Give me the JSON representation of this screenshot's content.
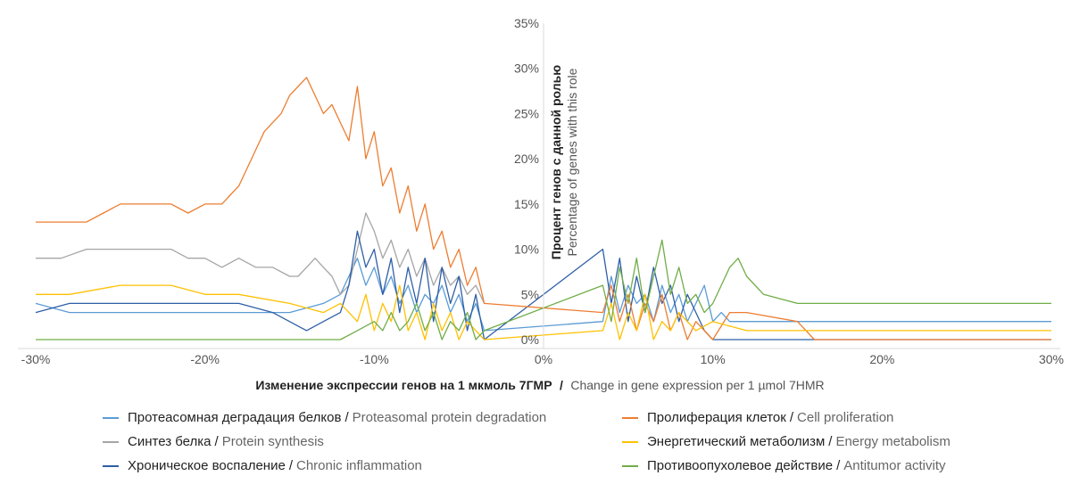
{
  "chart_data": {
    "type": "line",
    "xlabel_ru": "Изменение экспрессии генов на 1 мкмоль 7ГМР",
    "xlabel_en": "Change in gene expression per 1 µmol 7HMR",
    "xlabel_sep": "/",
    "ylabel_ru": "Процент генов с данной ролью",
    "ylabel_en": "Percentage of genes with this role",
    "xlim": [
      -30,
      30
    ],
    "ylim": [
      0,
      35
    ],
    "x_ticks": [
      -30,
      -20,
      -10,
      0,
      10,
      20,
      30
    ],
    "x_tick_labels": [
      "-30%",
      "-20%",
      "-10%",
      "0%",
      "10%",
      "20%",
      "30%"
    ],
    "y_ticks": [
      0,
      5,
      10,
      15,
      20,
      25,
      30,
      35
    ],
    "y_tick_labels": [
      "0%",
      "5%",
      "10%",
      "15%",
      "20%",
      "25%",
      "30%",
      "35%"
    ],
    "grid": false,
    "legend_position": "bottom",
    "series": [
      {
        "name": "Протеасомная деградация белков / Proteasomal protein degradation",
        "name_ru": "Протеасомная деградация белков",
        "name_en": "Proteasomal protein degradation",
        "color": "#5b9bd5",
        "x": [
          -30,
          -28,
          -25,
          -20,
          -18,
          -15,
          -13,
          -12,
          -11.5,
          -11,
          -10.5,
          -10,
          -9.5,
          -9,
          -8.5,
          -8,
          -7.5,
          -7,
          -6.5,
          -6,
          -5.5,
          -5,
          -4.5,
          -4,
          -3.5,
          3.5,
          4,
          4.5,
          5,
          5.5,
          6,
          6.5,
          7,
          7.5,
          8,
          8.5,
          9,
          9.5,
          10,
          10.5,
          11,
          12,
          15,
          20,
          25,
          30
        ],
        "y": [
          4,
          3,
          3,
          3,
          3,
          3,
          4,
          5,
          7,
          9,
          6,
          8,
          5,
          7,
          4,
          6,
          3,
          5,
          4,
          6,
          3,
          5,
          2,
          4,
          1,
          2,
          7,
          3,
          6,
          4,
          5,
          2,
          6,
          3,
          5,
          2,
          4,
          6,
          2,
          3,
          2,
          2,
          2,
          2,
          2,
          2
        ]
      },
      {
        "name": "Синтез белка / Protein synthesis",
        "name_ru": "Синтез белка",
        "name_en": "Protein synthesis",
        "color": "#a5a5a5",
        "x": [
          -30,
          -28.5,
          -27,
          -25,
          -22,
          -21,
          -20,
          -19,
          -18,
          -17,
          -16,
          -15,
          -14.5,
          -14,
          -13.5,
          -13,
          -12.5,
          -12,
          -11.5,
          -11,
          -10.5,
          -10,
          -9.5,
          -9,
          -8.5,
          -8,
          -7.5,
          -7,
          -6.5,
          -6,
          -5.5,
          -5,
          -4.5,
          -4,
          -3.5
        ],
        "y": [
          9,
          9,
          10,
          10,
          10,
          9,
          9,
          8,
          9,
          8,
          8,
          7,
          7,
          8,
          9,
          8,
          7,
          5,
          6,
          10,
          14,
          12,
          9,
          11,
          8,
          10,
          7,
          9,
          6,
          8,
          6,
          7,
          5,
          6,
          4
        ]
      },
      {
        "name": "Хроническое воспаление / Chronic inflammation",
        "name_ru": "Хроническое воспаление",
        "name_en": "Chronic inflammation",
        "color": "#2f5fa6",
        "x": [
          -30,
          -28,
          -25,
          -22,
          -20,
          -18,
          -16,
          -14,
          -13,
          -12,
          -11.5,
          -11,
          -10.5,
          -10,
          -9.5,
          -9,
          -8.5,
          -8,
          -7.5,
          -7,
          -6.5,
          -6,
          -5.5,
          -5,
          -4.5,
          -4,
          -3.5,
          3.5,
          4,
          4.5,
          5,
          5.5,
          6,
          6.5,
          7,
          7.5,
          8,
          8.5,
          9,
          9.5,
          10,
          12,
          15,
          20,
          25,
          30
        ],
        "y": [
          3,
          4,
          4,
          4,
          4,
          4,
          3,
          1,
          2,
          3,
          6,
          12,
          8,
          10,
          5,
          9,
          3,
          8,
          4,
          9,
          2,
          8,
          4,
          7,
          1,
          5,
          0,
          10,
          4,
          9,
          2,
          7,
          3,
          8,
          4,
          6,
          2,
          5,
          3,
          1,
          0,
          0,
          0,
          0,
          0,
          0
        ]
      },
      {
        "name": "Пролиферация клеток / Cell proliferation",
        "name_ru": "Пролиферация клеток",
        "name_en": "Cell proliferation",
        "color": "#ed7d31",
        "x": [
          -30,
          -27,
          -26,
          -25,
          -24,
          -23,
          -22,
          -21,
          -20,
          -19,
          -18,
          -17,
          -16.5,
          -16,
          -15.5,
          -15,
          -14.5,
          -14,
          -13.5,
          -13,
          -12.5,
          -12,
          -11.5,
          -11,
          -10.5,
          -10,
          -9.5,
          -9,
          -8.5,
          -8,
          -7.5,
          -7,
          -6.5,
          -6,
          -5.5,
          -5,
          -4.5,
          -4,
          -3.5,
          3.5,
          4,
          4.5,
          5,
          5.5,
          6,
          6.5,
          7,
          7.5,
          8,
          8.5,
          9,
          10,
          11,
          12,
          15,
          16,
          20,
          25,
          30
        ],
        "y": [
          13,
          13,
          14,
          15,
          15,
          15,
          15,
          14,
          15,
          15,
          17,
          21,
          23,
          24,
          25,
          27,
          28,
          29,
          27,
          25,
          26,
          24,
          22,
          28,
          20,
          23,
          17,
          19,
          14,
          17,
          12,
          15,
          10,
          12,
          8,
          10,
          6,
          8,
          4,
          3,
          6,
          2,
          5,
          1,
          4,
          2,
          5,
          1,
          3,
          0,
          2,
          0,
          3,
          3,
          2,
          0,
          0,
          0,
          0
        ]
      },
      {
        "name": "Энергетический метаболизм / Energy metabolism",
        "name_ru": "Энергетический метаболизм",
        "name_en": "Energy metabolism",
        "color": "#ffc000",
        "x": [
          -30,
          -28,
          -25,
          -22,
          -20,
          -18,
          -15,
          -13,
          -12,
          -11,
          -10.5,
          -10,
          -9.5,
          -9,
          -8.5,
          -8,
          -7.5,
          -7,
          -6.5,
          -6,
          -5.5,
          -5,
          -4.5,
          -4,
          -3.5,
          3.5,
          4,
          4.5,
          5,
          5.5,
          6,
          6.5,
          7,
          7.5,
          8,
          9,
          10,
          12,
          15,
          20,
          25,
          30
        ],
        "y": [
          5,
          5,
          6,
          6,
          5,
          5,
          4,
          3,
          4,
          2,
          5,
          1,
          4,
          2,
          6,
          1,
          3,
          0,
          4,
          1,
          3,
          0,
          2,
          1,
          0,
          1,
          4,
          0,
          3,
          1,
          5,
          0,
          2,
          1,
          3,
          1,
          2,
          1,
          1,
          1,
          1,
          1
        ]
      },
      {
        "name": "Противоопухолевое действие / Antitumor activity",
        "name_ru": "Противоопухолевое действие",
        "name_en": "Antitumor activity",
        "color": "#70ad47",
        "x": [
          -30,
          -25,
          -20,
          -15,
          -12,
          -11,
          -10,
          -9.5,
          -9,
          -8.5,
          -8,
          -7.5,
          -7,
          -6.5,
          -6,
          -5.5,
          -5,
          -4.5,
          -4,
          -3.5,
          3.5,
          4,
          4.5,
          5,
          5.5,
          6,
          6.5,
          7,
          7.5,
          8,
          8.5,
          9,
          9.5,
          10,
          10.5,
          11,
          11.5,
          12,
          13,
          15,
          20,
          25,
          30
        ],
        "y": [
          0,
          0,
          0,
          0,
          0,
          1,
          2,
          1,
          3,
          1,
          2,
          4,
          1,
          3,
          0,
          2,
          1,
          3,
          0,
          1,
          6,
          2,
          8,
          4,
          9,
          3,
          7,
          11,
          5,
          8,
          4,
          5,
          3,
          4,
          6,
          8,
          9,
          7,
          5,
          4,
          4,
          4,
          4
        ]
      }
    ]
  }
}
